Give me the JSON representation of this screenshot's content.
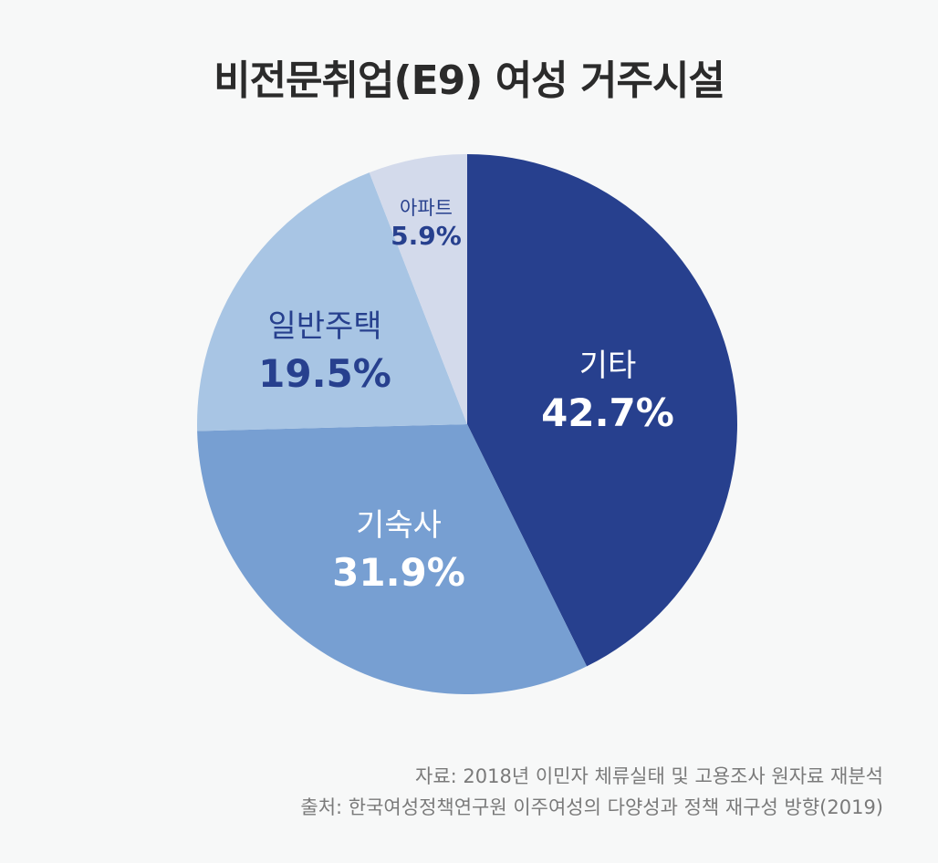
{
  "title": "비전문취업(E9) 여성 거주시설",
  "source": {
    "line1": "자료: 2018년 이민자 체류실태 및 고용조사 원자료 재분석",
    "line2": "출처: 한국여성정책연구원 이주여성의 다양성과 정책 재구성 방향(2019)"
  },
  "colors": {
    "기타": "#27408e",
    "기숙사": "#779fd2",
    "일반주택": "#a8c5e4",
    "아파트": "#d3daeb",
    "background": "#f7f8f8"
  },
  "labels": {
    "etc": {
      "name": "기타",
      "pct": "42.7%"
    },
    "dorm": {
      "name": "기숙사",
      "pct": "31.9%"
    },
    "house": {
      "name": "일반주택",
      "pct": "19.5%"
    },
    "apt": {
      "name": "아파트",
      "pct": "5.9%"
    }
  },
  "chart_data": {
    "type": "pie",
    "title": "비전문취업(E9) 여성 거주시설",
    "categories": [
      "기타",
      "기숙사",
      "일반주택",
      "아파트"
    ],
    "values": [
      42.7,
      31.9,
      19.5,
      5.9
    ],
    "unit": "%",
    "start_angle": "12 o'clock, clockwise",
    "colors": [
      "#27408e",
      "#779fd2",
      "#a8c5e4",
      "#d3daeb"
    ],
    "legend": "none (inline labels)",
    "notes": [
      "자료: 2018년 이민자 체류실태 및 고용조사 원자료 재분석",
      "출처: 한국여성정책연구원 이주여성의 다양성과 정책 재구성 방향(2019)"
    ]
  }
}
